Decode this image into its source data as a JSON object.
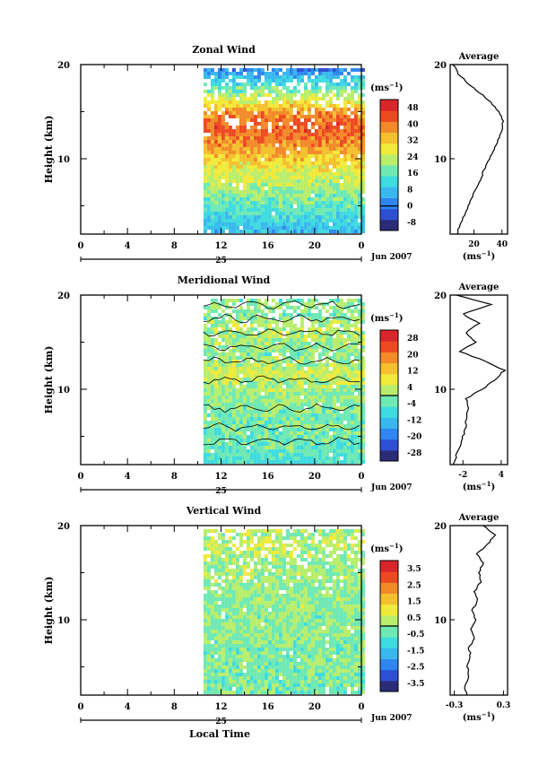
{
  "colors": {
    "background": "#ffffff",
    "ink": "#000000",
    "missing_data": "#ffffff",
    "colormap": [
      "#2a2c78",
      "#2f4fd3",
      "#2f86f0",
      "#3ab8ee",
      "#3edbe0",
      "#6fe9b4",
      "#b8ee6c",
      "#f2ea3a",
      "#f5c02e",
      "#f28a2a",
      "#ee4a22",
      "#d9262a"
    ]
  },
  "figure": {
    "date_label": "Jun 2007",
    "day_label": "25",
    "xlabel": "Local Time",
    "avg_title": "Average",
    "unit_label": "(ms",
    "unit_exp": "−1",
    "ylabel": "Height (km)"
  },
  "chart_data": [
    {
      "type": "heatmap",
      "title": "Zonal Wind",
      "xlabel": "Local Time",
      "ylabel": "Height (km)",
      "x_ticks": [
        "0",
        "4",
        "8",
        "12",
        "16",
        "20",
        "0"
      ],
      "x_range_hours": [
        0,
        24
      ],
      "data_start_hour": 10.5,
      "y_ticks": [
        "20",
        "10"
      ],
      "ylim_km": [
        2,
        20
      ],
      "colorbar_unit": "(ms−1)",
      "colorbar_ticks": [
        "48",
        "40",
        "32",
        "24",
        "16",
        "8",
        "0",
        "-8"
      ],
      "colorbar_range": [
        -12,
        52
      ],
      "contours": false,
      "height_km": [
        2,
        3,
        4,
        5,
        6,
        7,
        8,
        9,
        10,
        11,
        12,
        13,
        14,
        15,
        16,
        17,
        18,
        19,
        20
      ],
      "value": [
        6,
        9,
        12,
        15,
        18,
        21,
        24,
        27,
        31,
        35,
        39,
        42,
        42,
        38,
        30,
        22,
        14,
        6,
        -2
      ],
      "average": {
        "title": "Average",
        "x_ticks": [
          "20",
          "40"
        ],
        "xlim": [
          3,
          44
        ],
        "xlabel": "(ms−1)",
        "height_km": [
          2,
          3,
          4,
          5,
          6,
          7,
          8,
          9,
          10,
          11,
          12,
          13,
          14,
          15,
          16,
          17,
          18,
          19,
          20
        ],
        "value": [
          8,
          10,
          13,
          16,
          19,
          22,
          25,
          28,
          31,
          34,
          37,
          40,
          41,
          38,
          32,
          24,
          16,
          9,
          5
        ]
      }
    },
    {
      "type": "heatmap",
      "title": "Meridional Wind",
      "xlabel": "Local Time",
      "ylabel": "Height (km)",
      "x_ticks": [
        "0",
        "4",
        "8",
        "12",
        "16",
        "20",
        "0"
      ],
      "x_range_hours": [
        0,
        24
      ],
      "data_start_hour": 10.5,
      "y_ticks": [
        "20",
        "10"
      ],
      "ylim_km": [
        2,
        20
      ],
      "colorbar_unit": "(ms−1)",
      "colorbar_ticks": [
        "28",
        "20",
        "12",
        "4",
        "-4",
        "-12",
        "-20",
        "-28"
      ],
      "colorbar_range": [
        -32,
        32
      ],
      "contours": true,
      "height_km": [
        2,
        3,
        4,
        5,
        6,
        7,
        8,
        9,
        10,
        11,
        12,
        13,
        14,
        15,
        16,
        17,
        18,
        19,
        20
      ],
      "value": [
        -6,
        -5,
        -4,
        -3,
        -2,
        -2,
        -1,
        0,
        1,
        3,
        5,
        2,
        -1,
        1,
        2,
        3,
        -2,
        1,
        -3
      ],
      "average": {
        "title": "Average",
        "x_ticks": [
          "-2",
          "4"
        ],
        "xlim": [
          -4,
          5
        ],
        "xlabel": "(ms−1)",
        "height_km": [
          2,
          3,
          4,
          5,
          6,
          7,
          8,
          9,
          10,
          11,
          12,
          13,
          14,
          15,
          16,
          17,
          18,
          19,
          20
        ],
        "value": [
          -3.5,
          -3,
          -2.5,
          -2,
          -1.5,
          -1.5,
          -1,
          -1.5,
          1,
          3,
          4.5,
          1.5,
          -2.5,
          0,
          -1.5,
          0.5,
          -2,
          2.5,
          -3
        ]
      }
    },
    {
      "type": "heatmap",
      "title": "Vertical Wind",
      "xlabel": "Local Time",
      "ylabel": "Height (km)",
      "x_ticks": [
        "0",
        "4",
        "8",
        "12",
        "16",
        "20",
        "0"
      ],
      "x_range_hours": [
        0,
        24
      ],
      "data_start_hour": 10.5,
      "y_ticks": [
        "20",
        "10"
      ],
      "ylim_km": [
        2,
        20
      ],
      "colorbar_unit": "(ms−1)",
      "colorbar_ticks": [
        "3.5",
        "2.5",
        "1.5",
        "0.5",
        "-0.5",
        "-1.5",
        "-2.5",
        "-3.5"
      ],
      "colorbar_range": [
        -4,
        4
      ],
      "contours": false,
      "height_km": [
        2,
        3,
        4,
        5,
        6,
        7,
        8,
        9,
        10,
        11,
        12,
        13,
        14,
        15,
        16,
        17,
        18,
        19,
        20
      ],
      "value": [
        -0.3,
        -0.2,
        -0.3,
        -0.2,
        -0.1,
        -0.2,
        -0.1,
        0,
        -0.1,
        0,
        0.1,
        0,
        0.1,
        0.2,
        0,
        0.2,
        0.5,
        0.3,
        0.2
      ],
      "average": {
        "title": "Average",
        "x_ticks": [
          "-0.3",
          "0.3"
        ],
        "xlim": [
          -0.35,
          0.35
        ],
        "xlabel": "(ms−1)",
        "height_km": [
          2,
          3,
          4,
          5,
          6,
          7,
          8,
          9,
          10,
          11,
          12,
          13,
          14,
          15,
          16,
          17,
          18,
          19,
          20
        ],
        "value": [
          -0.15,
          -0.18,
          -0.12,
          -0.14,
          -0.1,
          -0.12,
          -0.06,
          -0.1,
          -0.04,
          -0.08,
          -0.02,
          -0.05,
          0.02,
          0.0,
          0.05,
          -0.02,
          0.1,
          0.2,
          0.05
        ]
      }
    }
  ]
}
